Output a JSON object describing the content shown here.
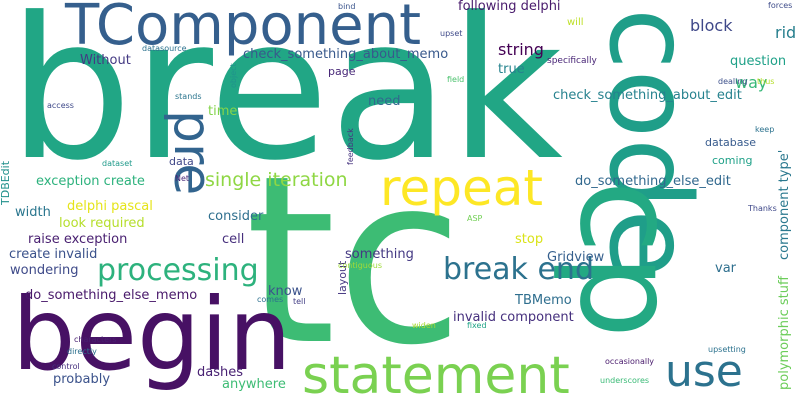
{
  "words": [
    {
      "id": "break",
      "text": "break",
      "color": "#21a685"
    },
    {
      "id": "tc",
      "text": "tc",
      "color": "#3dbc74"
    },
    {
      "id": "code",
      "text": "code",
      "color": "#1f9e89"
    },
    {
      "id": "begin",
      "text": "begin",
      "color": "#471164"
    },
    {
      "id": "tcomponent",
      "text": "TComponent",
      "color": "#355f8d"
    },
    {
      "id": "cp",
      "text": "cp",
      "color": "#23a983"
    },
    {
      "id": "statement",
      "text": "statement",
      "color": "#7ad151"
    },
    {
      "id": "repeat",
      "text": "repeat",
      "color": "#fde725"
    },
    {
      "id": "pre",
      "text": "pre",
      "color": "#32648e"
    },
    {
      "id": "use",
      "text": "use",
      "color": "#2c728e"
    },
    {
      "id": "processing",
      "text": "processing",
      "color": "#2db27d"
    },
    {
      "id": "break_end",
      "text": "break end",
      "color": "#2c728e"
    },
    {
      "id": "single_iteration",
      "text": "single iteration",
      "color": "#8fd744"
    },
    {
      "id": "check_memo",
      "text": "check_something_about_memo",
      "color": "#38598c"
    },
    {
      "id": "check_edit",
      "text": "check_something_about_edit",
      "color": "#26828e"
    },
    {
      "id": "do_else_edit",
      "text": "do_something_else_edit",
      "color": "#31688e"
    },
    {
      "id": "do_else_memo",
      "text": "do_something_else_memo",
      "color": "#48186a"
    },
    {
      "id": "following_delphi",
      "text": "following delphi",
      "color": "#481a6c"
    },
    {
      "id": "string",
      "text": "string",
      "color": "#440154"
    },
    {
      "id": "block",
      "text": "block",
      "color": "#3f4889"
    },
    {
      "id": "way",
      "text": "way",
      "color": "#37b878"
    },
    {
      "id": "rid",
      "text": "rid",
      "color": "#277f8e"
    },
    {
      "id": "question",
      "text": "question",
      "color": "#1fa188"
    },
    {
      "id": "true",
      "text": "true",
      "color": "#25838e"
    },
    {
      "id": "need",
      "text": "need",
      "color": "#31688e"
    },
    {
      "id": "time",
      "text": "time",
      "color": "#84d44b"
    },
    {
      "id": "page",
      "text": "page",
      "color": "#482878"
    },
    {
      "id": "without",
      "text": "Without",
      "color": "#443a83"
    },
    {
      "id": "exception_create",
      "text": "exception create",
      "color": "#2db27d"
    },
    {
      "id": "consider",
      "text": "consider",
      "color": "#2e6f8e"
    },
    {
      "id": "delphi_pascal",
      "text": "delphi pascal",
      "color": "#e5e419"
    },
    {
      "id": "look_required",
      "text": "look required",
      "color": "#b5de2b"
    },
    {
      "id": "width",
      "text": "width",
      "color": "#2a768e"
    },
    {
      "id": "raise_exception",
      "text": "raise exception",
      "color": "#481f70"
    },
    {
      "id": "create_invalid",
      "text": "create invalid",
      "color": "#3b528b"
    },
    {
      "id": "wondering",
      "text": "wondering",
      "color": "#3e4a89"
    },
    {
      "id": "cell",
      "text": "cell",
      "color": "#472f7d"
    },
    {
      "id": "know",
      "text": "know",
      "color": "#3b528b"
    },
    {
      "id": "something",
      "text": "something",
      "color": "#443983"
    },
    {
      "id": "invalid_component",
      "text": "invalid component",
      "color": "#46307e"
    },
    {
      "id": "tbmemo",
      "text": "TBMemo",
      "color": "#2e6e8e"
    },
    {
      "id": "gridview",
      "text": "Gridview",
      "color": "#355f8d"
    },
    {
      "id": "stop",
      "text": "stop",
      "color": "#dae319"
    },
    {
      "id": "var",
      "text": "var",
      "color": "#2e6f8e"
    },
    {
      "id": "layout",
      "text": "layout",
      "color": "#453781"
    },
    {
      "id": "probably",
      "text": "probably",
      "color": "#3b528b"
    },
    {
      "id": "dashes",
      "text": "dashes",
      "color": "#482173"
    },
    {
      "id": "anywhere",
      "text": "anywhere",
      "color": "#3dbc74"
    },
    {
      "id": "component_type",
      "text": "component type'",
      "color": "#2a788e"
    },
    {
      "id": "polymorphic_stuff",
      "text": "polymorphic stuff",
      "color": "#6ccd5a"
    },
    {
      "id": "database",
      "text": "database",
      "color": "#375b8d"
    },
    {
      "id": "coming",
      "text": "coming",
      "color": "#1fa188"
    },
    {
      "id": "data",
      "text": "data",
      "color": "#3f4788"
    },
    {
      "id": "tdbedit",
      "text": "TDBEdit",
      "color": "#21918c"
    },
    {
      "id": "will",
      "text": "will",
      "color": "#bddf26"
    },
    {
      "id": "specifically",
      "text": "specifically",
      "color": "#482576"
    },
    {
      "id": "upset",
      "text": "upset",
      "color": "#3e4989"
    },
    {
      "id": "bind",
      "text": "bind",
      "color": "#3a548c"
    },
    {
      "id": "forces",
      "text": "forces",
      "color": "#3e4c8a"
    },
    {
      "id": "dealing",
      "text": "dealing",
      "color": "#3c4f8a"
    },
    {
      "id": "thus",
      "text": "thus",
      "color": "#b5de2b"
    },
    {
      "id": "keep",
      "text": "keep",
      "color": "#2c728e"
    },
    {
      "id": "thanks",
      "text": "Thanks",
      "color": "#3f4889"
    },
    {
      "id": "field",
      "text": "field",
      "color": "#4ac16d"
    },
    {
      "id": "object",
      "text": "object",
      "color": "#20938c"
    },
    {
      "id": "stands",
      "text": "stands",
      "color": "#2b758e"
    },
    {
      "id": "datasource",
      "text": "datasource",
      "color": "#2c728e"
    },
    {
      "id": "access",
      "text": "access",
      "color": "#3e4989"
    },
    {
      "id": "dataset",
      "text": "dataset",
      "color": "#1f9a8a"
    },
    {
      "id": "net",
      "text": "Net",
      "color": "#482677"
    },
    {
      "id": "feedback",
      "text": "feedback",
      "color": "#46337f"
    },
    {
      "id": "asp",
      "text": "ASP",
      "color": "#73d056"
    },
    {
      "id": "contiguous",
      "text": "contiguous",
      "color": "#a0da39"
    },
    {
      "id": "characters",
      "text": "characters",
      "color": "#482071"
    },
    {
      "id": "directly",
      "text": "directly",
      "color": "#2d708e"
    },
    {
      "id": "comes",
      "text": "comes",
      "color": "#2d708e"
    },
    {
      "id": "tell",
      "text": "tell",
      "color": "#433e85"
    },
    {
      "id": "control",
      "text": "control",
      "color": "#46317e"
    },
    {
      "id": "widen",
      "text": "widen",
      "color": "#a8db34"
    },
    {
      "id": "fixed",
      "text": "fixed",
      "color": "#20a386"
    },
    {
      "id": "occasionally",
      "text": "occasionally",
      "color": "#481a6c"
    },
    {
      "id": "upsetting",
      "text": "upsetting",
      "color": "#2c728e"
    },
    {
      "id": "underscores",
      "text": "underscores",
      "color": "#3aba76"
    }
  ]
}
